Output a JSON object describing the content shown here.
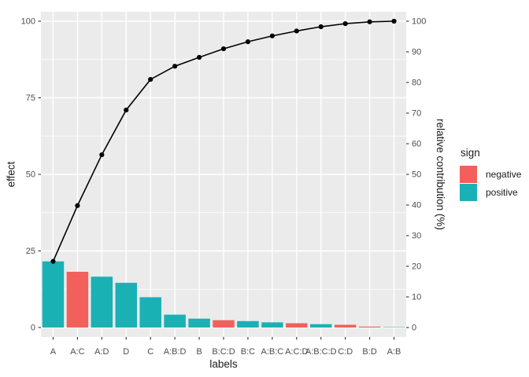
{
  "colors": {
    "background": "#FFFFFF",
    "panel": "#EBEBEB",
    "grid": "#FFFFFF",
    "positive": "#1AB1B5",
    "negative": "#F3605C",
    "line": "#000000",
    "point": "#000000",
    "tick": "#333333",
    "tick_text": "#4D4D4D"
  },
  "axes": {
    "left": {
      "title": "effect",
      "ticks": [
        0,
        25,
        50,
        75,
        100
      ]
    },
    "right": {
      "title": "relative contribution (%)",
      "ticks": [
        0,
        10,
        20,
        30,
        40,
        50,
        60,
        70,
        80,
        90,
        100
      ]
    },
    "bottom": {
      "title": "labels"
    }
  },
  "legend": {
    "title": "sign",
    "items": [
      {
        "label": "negative",
        "sign": "negative",
        "color": "#F3605C"
      },
      {
        "label": "positive",
        "sign": "positive",
        "color": "#1AB1B5"
      }
    ]
  },
  "chart_data": {
    "type": "pareto",
    "subtype": "bar+cumulative-line",
    "title": "",
    "xlabel": "labels",
    "ylabel": "effect",
    "y2label": "relative contribution (%)",
    "ylim": [
      0,
      100
    ],
    "y2lim": [
      0,
      100
    ],
    "grid": "major y every 25, minor y every 12.5, vertical major at each category",
    "legend_position": "right-middle",
    "categories": [
      "A",
      "A:C",
      "A:D",
      "D",
      "C",
      "A:B:D",
      "B",
      "B:C:D",
      "B:C",
      "A:B:C",
      "A:C:D",
      "A:B:C:D",
      "C:D",
      "B:D",
      "A:B"
    ],
    "series": [
      {
        "name": "effect",
        "type": "bar",
        "values": [
          21.6,
          18.2,
          16.6,
          14.6,
          9.9,
          4.2,
          2.9,
          2.4,
          2.1,
          1.7,
          1.4,
          1.1,
          0.9,
          0.3,
          0.1
        ],
        "sign": [
          "positive",
          "negative",
          "positive",
          "positive",
          "positive",
          "positive",
          "positive",
          "negative",
          "positive",
          "positive",
          "negative",
          "positive",
          "negative",
          "negative",
          "positive"
        ]
      },
      {
        "name": "cumulative relative contribution (%)",
        "type": "line+point",
        "values": [
          21.6,
          39.8,
          56.4,
          71.0,
          81.0,
          85.3,
          88.2,
          91.0,
          93.3,
          95.2,
          96.8,
          98.2,
          99.2,
          99.8,
          100.0
        ]
      }
    ]
  }
}
